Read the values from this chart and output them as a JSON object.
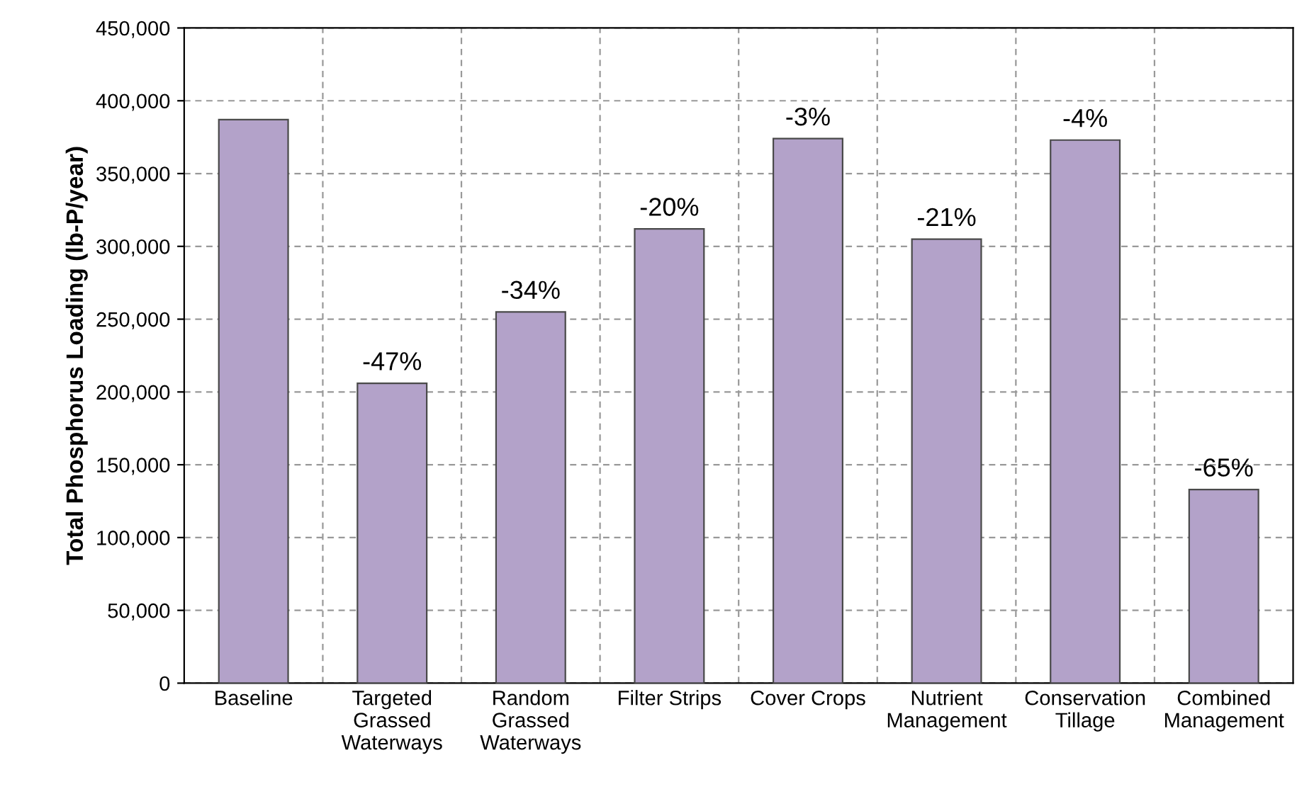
{
  "chart_data": {
    "type": "bar",
    "ylabel": "Total Phosphorus Loading (lb-P/year)",
    "categories": [
      "Baseline",
      "Targeted\nGrassed\nWaterways",
      "Random\nGrassed\nWaterways",
      "Filter Strips",
      "Cover Crops",
      "Nutrient\nManagement",
      "Conservation\nTillage",
      "Combined\nManagement"
    ],
    "values": [
      387000,
      206000,
      255000,
      312000,
      374000,
      305000,
      373000,
      133000
    ],
    "annotations": [
      {
        "text": "-47%",
        "x": "Targeted\nGrassed\nWaterways",
        "y": 206000
      },
      {
        "text": "-34%",
        "x": "Random\nGrassed\nWaterways",
        "y": 255000
      },
      {
        "text": "-20%",
        "x": "Filter Strips",
        "y": 312000
      },
      {
        "text": "-3%",
        "x": "Cover Crops",
        "y": 374000
      },
      {
        "text": "-21%",
        "x": "Nutrient\nManagement",
        "y": 305000
      },
      {
        "text": "-4%",
        "x": "Conservation\nTillage",
        "y": 373000
      },
      {
        "text": "-65%",
        "x": "Combined\nManagement",
        "y": 133000
      }
    ],
    "color": "#b3a2c9",
    "ylim": [
      0,
      450000
    ],
    "yticks": [
      {
        "value": 0,
        "label": "0"
      },
      {
        "value": 50000,
        "label": "50,000"
      },
      {
        "value": 100000,
        "label": "100,000"
      },
      {
        "value": 150000,
        "label": "150,000"
      },
      {
        "value": 200000,
        "label": "200,000"
      },
      {
        "value": 250000,
        "label": "250,000"
      },
      {
        "value": 300000,
        "label": "300,000"
      },
      {
        "value": 350000,
        "label": "350,000"
      },
      {
        "value": 400000,
        "label": "400,000"
      },
      {
        "value": 450000,
        "label": "450,000"
      }
    ],
    "grid": true
  }
}
